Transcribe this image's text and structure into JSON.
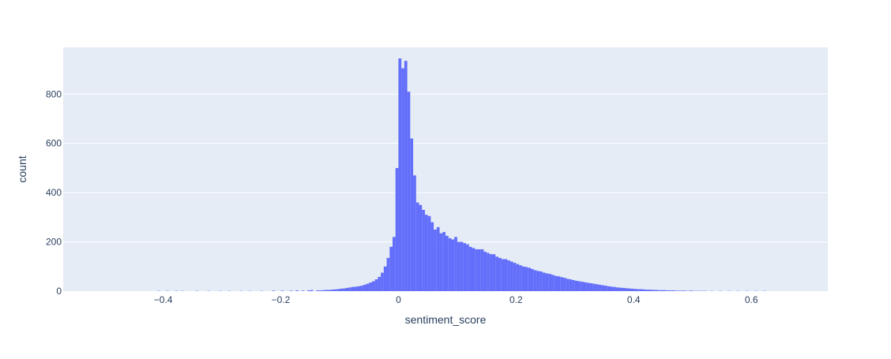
{
  "chart_data": {
    "type": "bar",
    "subtype": "histogram",
    "title": "",
    "xlabel": "sentiment_score",
    "ylabel": "count",
    "xlim": [
      -0.57,
      0.73
    ],
    "ylim": [
      0,
      990
    ],
    "x_ticks": [
      -0.4,
      -0.2,
      0,
      0.2,
      0.4,
      0.6
    ],
    "x_tick_labels": [
      "−0.4",
      "−0.2",
      "0",
      "0.2",
      "0.4",
      "0.6"
    ],
    "y_ticks": [
      0,
      200,
      400,
      600,
      800
    ],
    "y_tick_labels": [
      "0",
      "200",
      "400",
      "600",
      "800"
    ],
    "grid": "horizontal",
    "legend": "none",
    "bin_width": 0.005,
    "bin_starts": [
      -0.41,
      -0.395,
      -0.38,
      -0.37,
      -0.345,
      -0.325,
      -0.305,
      -0.29,
      -0.27,
      -0.255,
      -0.235,
      -0.215,
      -0.2,
      -0.185,
      -0.175,
      -0.165,
      -0.155,
      -0.15,
      -0.14,
      -0.135,
      -0.13,
      -0.125,
      -0.12,
      -0.115,
      -0.11,
      -0.105,
      -0.1,
      -0.095,
      -0.09,
      -0.085,
      -0.08,
      -0.075,
      -0.07,
      -0.065,
      -0.06,
      -0.055,
      -0.05,
      -0.045,
      -0.04,
      -0.035,
      -0.03,
      -0.025,
      -0.02,
      -0.015,
      -0.01,
      -0.005,
      0,
      0.005,
      0.01,
      0.015,
      0.02,
      0.025,
      0.03,
      0.035,
      0.04,
      0.045,
      0.05,
      0.055,
      0.06,
      0.065,
      0.07,
      0.075,
      0.08,
      0.085,
      0.09,
      0.095,
      0.1,
      0.105,
      0.11,
      0.115,
      0.12,
      0.125,
      0.13,
      0.135,
      0.14,
      0.145,
      0.15,
      0.155,
      0.16,
      0.165,
      0.17,
      0.175,
      0.18,
      0.185,
      0.19,
      0.195,
      0.2,
      0.205,
      0.21,
      0.215,
      0.22,
      0.225,
      0.23,
      0.235,
      0.24,
      0.245,
      0.25,
      0.255,
      0.26,
      0.265,
      0.27,
      0.275,
      0.28,
      0.285,
      0.29,
      0.295,
      0.3,
      0.305,
      0.31,
      0.315,
      0.32,
      0.325,
      0.33,
      0.335,
      0.34,
      0.345,
      0.35,
      0.355,
      0.36,
      0.365,
      0.37,
      0.375,
      0.38,
      0.385,
      0.39,
      0.395,
      0.4,
      0.405,
      0.41,
      0.415,
      0.42,
      0.425,
      0.43,
      0.435,
      0.44,
      0.445,
      0.45,
      0.455,
      0.46,
      0.465,
      0.47,
      0.475,
      0.48,
      0.485,
      0.49,
      0.495,
      0.5,
      0.505,
      0.51,
      0.515,
      0.52,
      0.53,
      0.545,
      0.56,
      0.575,
      0.59,
      0.605,
      0.62,
      0.635,
      0.65
    ],
    "values": [
      1,
      1,
      1,
      1,
      1,
      1,
      1,
      1,
      1,
      1,
      1,
      2,
      2,
      2,
      3,
      2,
      3,
      4,
      3,
      3,
      4,
      5,
      5,
      6,
      7,
      8,
      10,
      11,
      13,
      15,
      17,
      18,
      20,
      22,
      26,
      30,
      35,
      40,
      48,
      58,
      75,
      100,
      135,
      180,
      220,
      500,
      945,
      905,
      935,
      810,
      620,
      470,
      360,
      350,
      330,
      310,
      305,
      280,
      250,
      260,
      235,
      240,
      225,
      215,
      210,
      220,
      200,
      200,
      195,
      190,
      180,
      175,
      170,
      170,
      170,
      160,
      155,
      150,
      150,
      140,
      135,
      130,
      130,
      125,
      120,
      115,
      110,
      105,
      100,
      98,
      95,
      90,
      85,
      82,
      80,
      75,
      72,
      70,
      66,
      62,
      60,
      57,
      54,
      50,
      48,
      45,
      42,
      40,
      38,
      36,
      34,
      32,
      30,
      28,
      26,
      24,
      22,
      20,
      18,
      17,
      15,
      14,
      13,
      12,
      11,
      10,
      9,
      8,
      8,
      7,
      6,
      6,
      5,
      5,
      4,
      4,
      4,
      3,
      3,
      3,
      2,
      2,
      2,
      2,
      1,
      2,
      1,
      1,
      1,
      1,
      1,
      1,
      1,
      1,
      1,
      1,
      1,
      1
    ],
    "colors": {
      "bar": "#636efa",
      "plot_bg": "#e5ecf6",
      "grid": "#ffffff",
      "text": "#2a3f5f"
    }
  }
}
